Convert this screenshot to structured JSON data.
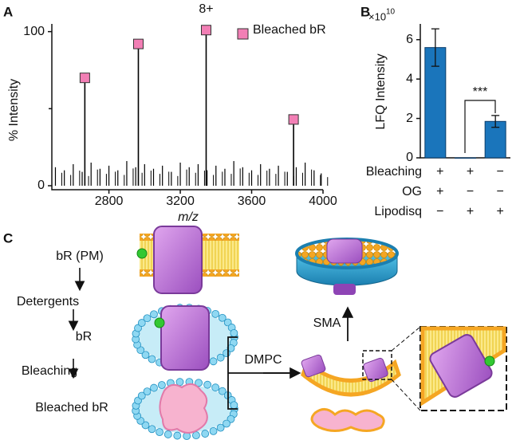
{
  "panel_labels": [
    "A",
    "B",
    "C"
  ],
  "chart_data": [
    {
      "type": "spectrum",
      "xlabel": "m/z",
      "ylabel": "% Intensity",
      "xlim": [
        2480,
        4000
      ],
      "ylim": [
        0,
        105
      ],
      "xticks": [
        2800,
        3200,
        3600,
        4000
      ],
      "yticks": [
        0,
        100
      ],
      "minor_yticks": [
        50
      ],
      "series": [
        {
          "name": "Bleached bR",
          "color": "#f27fb5",
          "stem_color": "#000000",
          "x": [
            2665,
            2965,
            3345,
            3835
          ],
          "values": [
            70,
            92,
            101,
            43
          ]
        }
      ],
      "noise": {
        "x": [
          2500,
          2550,
          2600,
          2650,
          2700,
          2750,
          2800,
          2850,
          2900,
          2950,
          3000,
          3050,
          3100,
          3150,
          3200,
          3250,
          3300,
          3350,
          3400,
          3450,
          3500,
          3550,
          3600,
          3650,
          3700,
          3750,
          3800,
          3850,
          3900,
          3950,
          3990
        ],
        "values": [
          12,
          10,
          14,
          9,
          15,
          11,
          13,
          10,
          16,
          12,
          14,
          11,
          13,
          9,
          15,
          12,
          14,
          10,
          13,
          11,
          16,
          12,
          10,
          14,
          11,
          13,
          9,
          12,
          15,
          10,
          8
        ]
      },
      "annotations": [
        {
          "text": "8+",
          "x": 3345
        }
      ]
    },
    {
      "type": "bar",
      "ylabel": "LFQ Intensity",
      "axis_multiplier": {
        "base": "×10",
        "exponent": "10"
      },
      "ylim": [
        0,
        6.8
      ],
      "yticks": [
        0,
        2,
        4,
        6
      ],
      "values": [
        5.6,
        0,
        1.85
      ],
      "errors": [
        0.95,
        0,
        0.3
      ],
      "color": "#1a75bb",
      "significance": "***",
      "conditions": [
        {
          "label": "Bleaching",
          "marks": [
            "+",
            "+",
            "−"
          ]
        },
        {
          "label": "OG",
          "marks": [
            "+",
            "−",
            "−"
          ]
        },
        {
          "label": "Lipodisq",
          "marks": [
            "−",
            "+",
            "+"
          ]
        }
      ]
    }
  ],
  "diagram": {
    "steps": [
      "bR (PM)",
      "Detergents",
      "bR",
      "Bleaching",
      "Bleached bR"
    ],
    "reagents": [
      "DMPC",
      "SMA"
    ]
  }
}
